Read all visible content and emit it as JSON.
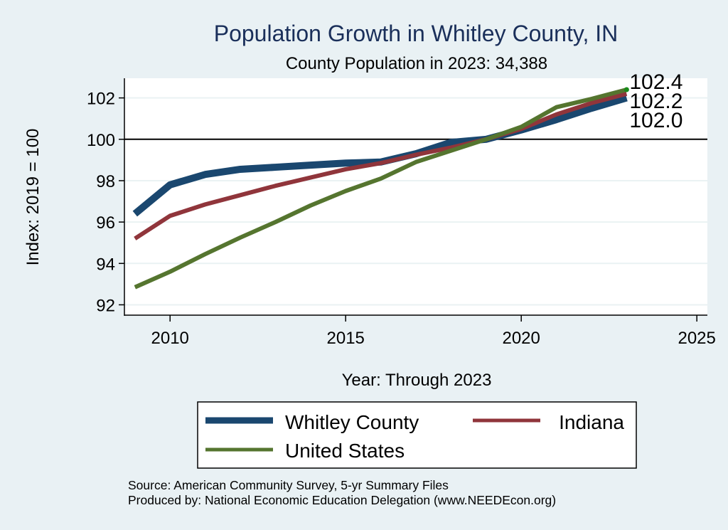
{
  "chart_data": {
    "type": "line",
    "title": "Population Growth in Whitley County, IN",
    "subtitle": "County Population in 2023: 34,388",
    "xlabel": "Year: Through 2023",
    "ylabel": "Index: 2019 = 100",
    "xlim": [
      2008.7,
      2025.3
    ],
    "ylim": [
      91.5,
      102.95
    ],
    "x_ticks": [
      2010,
      2015,
      2020,
      2025
    ],
    "x_tick_labels": [
      "2010",
      "2015",
      "2020",
      "2025"
    ],
    "y_ticks": [
      92,
      94,
      96,
      98,
      100,
      102
    ],
    "y_tick_labels": [
      "92",
      "94",
      "96",
      "98",
      "100",
      "102"
    ],
    "reference_line": 100,
    "grid": true,
    "x": [
      2009,
      2010,
      2011,
      2012,
      2013,
      2014,
      2015,
      2016,
      2017,
      2018,
      2019,
      2020,
      2021,
      2022,
      2023
    ],
    "series": [
      {
        "name": "Whitley  County",
        "color": "#1a476f",
        "values": [
          96.4,
          97.8,
          98.3,
          98.55,
          98.65,
          98.75,
          98.85,
          98.9,
          99.3,
          99.85,
          100.0,
          100.45,
          100.95,
          101.5,
          102.0
        ],
        "end_label": "102.0"
      },
      {
        "name": "Indiana",
        "color": "#90353b",
        "values": [
          95.2,
          96.3,
          96.85,
          97.3,
          97.75,
          98.15,
          98.55,
          98.85,
          99.25,
          99.6,
          100.0,
          100.5,
          101.2,
          101.75,
          102.2
        ],
        "end_label": "102.2"
      },
      {
        "name": "United States",
        "color": "#55752f",
        "values": [
          92.85,
          93.6,
          94.45,
          95.25,
          96.0,
          96.8,
          97.5,
          98.1,
          98.9,
          99.45,
          100.0,
          100.6,
          101.55,
          101.95,
          102.4
        ],
        "end_label": "102.4"
      }
    ],
    "legend": {
      "placement": "bottom",
      "entries": [
        "Whitley  County",
        "Indiana",
        "United States"
      ]
    }
  },
  "notes": {
    "source": "Source: American Community Survey, 5-yr Summary Files",
    "producer": "Produced by: National Economic Education Delegation (www.NEEDEcon.org)"
  },
  "colors": {
    "background": "#e9f1f4",
    "plot_background": "#ffffff",
    "title": "#1a2f5a",
    "grid": "#eaf2f3"
  }
}
